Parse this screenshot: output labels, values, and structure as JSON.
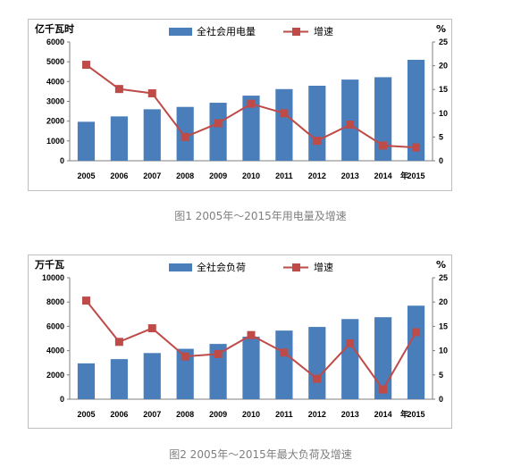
{
  "colors": {
    "bar": "#4a7ebb",
    "line": "#be4b48",
    "axis": "#7f7f7f"
  },
  "charts": [
    {
      "caption": "图1 2005年～2015年用电量及增速",
      "chart_data": {
        "type": "bar",
        "categories": [
          "2005",
          "2006",
          "2007",
          "2008",
          "2009",
          "2010",
          "2011",
          "2012",
          "2013",
          "2014",
          "2015"
        ],
        "x_suffix": "年",
        "series": [
          {
            "name": "全社会用电量",
            "type": "bar",
            "axis": "left",
            "values": [
              1970,
              2240,
              2600,
              2720,
              2930,
              3290,
              3620,
              3790,
              4100,
              4220,
              5100
            ]
          },
          {
            "name": "增速",
            "type": "line",
            "axis": "right",
            "values": [
              20.2,
              15.1,
              14.2,
              5.0,
              7.9,
              12.0,
              10.0,
              4.2,
              7.6,
              3.2,
              2.8
            ]
          }
        ],
        "ylabel": "亿千瓦时",
        "y2label": "%",
        "ylim": [
          0,
          6000
        ],
        "yticks": [
          0,
          1000,
          2000,
          3000,
          4000,
          5000,
          6000
        ],
        "y2lim": [
          0,
          25
        ],
        "y2ticks": [
          0,
          5,
          10,
          15,
          20,
          25
        ],
        "legend": "top"
      }
    },
    {
      "caption": "图2 2005年～2015年最大负荷及增速",
      "chart_data": {
        "type": "bar",
        "categories": [
          "2005",
          "2006",
          "2007",
          "2008",
          "2009",
          "2010",
          "2011",
          "2012",
          "2013",
          "2014",
          "2015"
        ],
        "x_suffix": "年",
        "series": [
          {
            "name": "全社会负荷",
            "type": "bar",
            "axis": "left",
            "values": [
              2950,
              3300,
              3800,
              4150,
              4550,
              5150,
              5650,
              5950,
              6600,
              6750,
              7700
            ]
          },
          {
            "name": "增速",
            "type": "line",
            "axis": "right",
            "values": [
              20.3,
              11.8,
              14.6,
              8.8,
              9.3,
              13.2,
              9.6,
              4.2,
              11.5,
              2.0,
              13.8
            ]
          }
        ],
        "ylabel": "万千瓦",
        "y2label": "%",
        "ylim": [
          0,
          10000
        ],
        "yticks": [
          0,
          2000,
          4000,
          6000,
          8000,
          10000
        ],
        "y2lim": [
          0,
          25
        ],
        "y2ticks": [
          0,
          5,
          10,
          15,
          20,
          25
        ],
        "legend": "top"
      }
    }
  ]
}
